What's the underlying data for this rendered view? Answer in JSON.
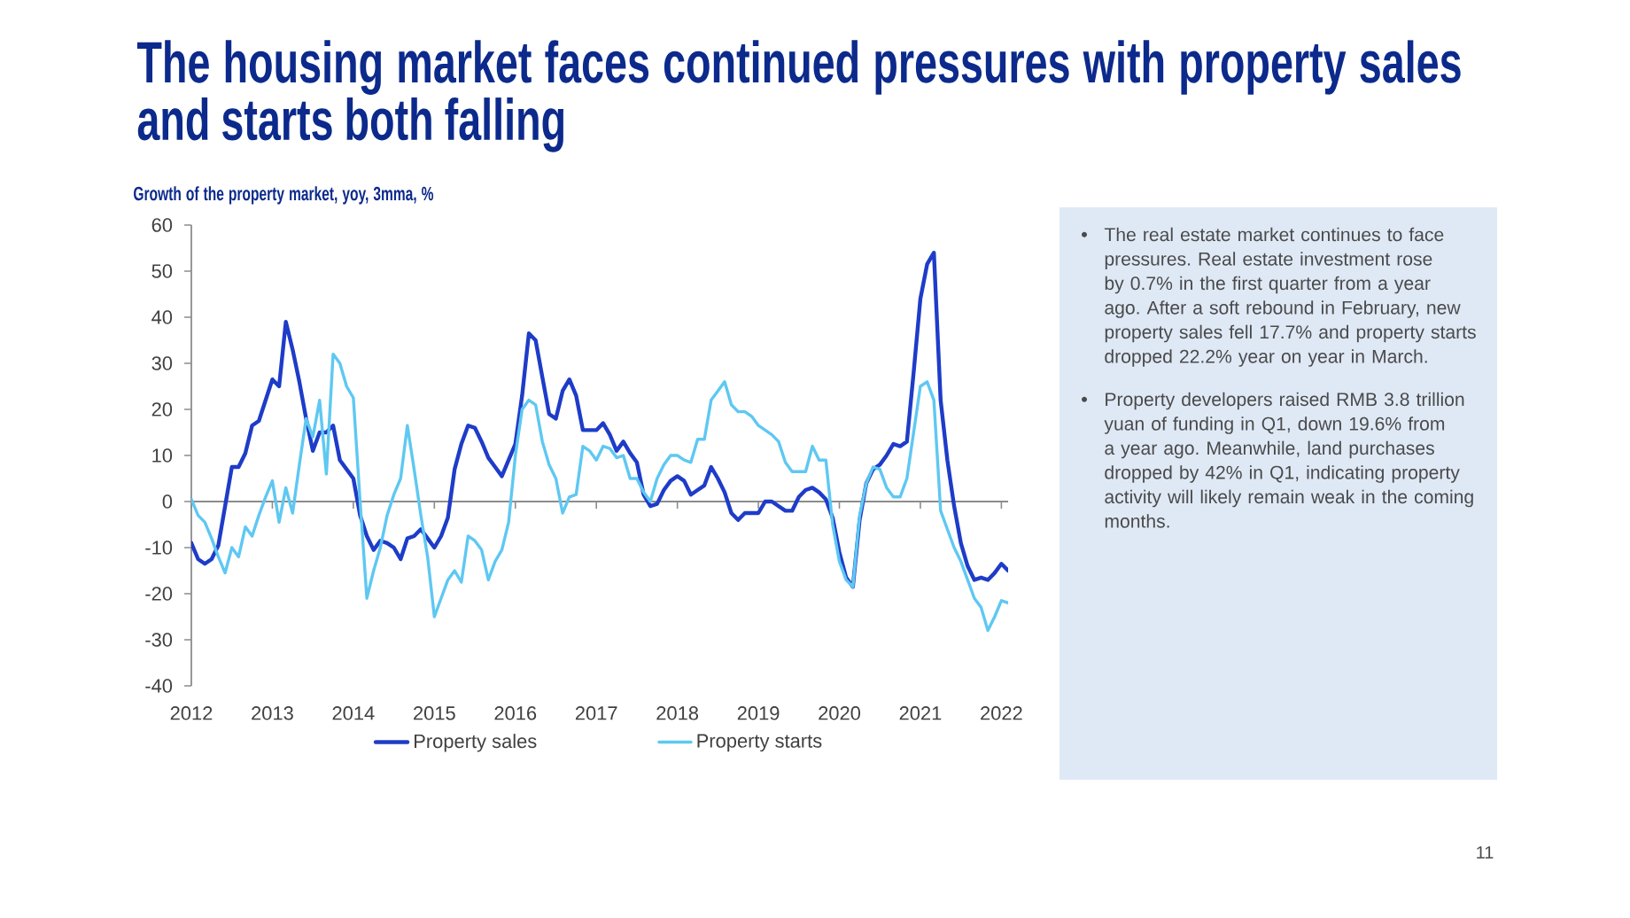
{
  "chart_data": {
    "type": "line",
    "title": "The housing market faces continued pressures with property sales and starts both falling",
    "subtitle": "Growth of the property market, yoy, 3mma, %",
    "x": [
      "2012-01",
      "2012-02",
      "2012-03",
      "2012-04",
      "2012-05",
      "2012-06",
      "2012-07",
      "2012-08",
      "2012-09",
      "2012-10",
      "2012-11",
      "2012-12",
      "2013-01",
      "2013-02",
      "2013-03",
      "2013-04",
      "2013-05",
      "2013-06",
      "2013-07",
      "2013-08",
      "2013-09",
      "2013-10",
      "2013-11",
      "2013-12",
      "2014-01",
      "2014-02",
      "2014-03",
      "2014-04",
      "2014-05",
      "2014-06",
      "2014-07",
      "2014-08",
      "2014-09",
      "2014-10",
      "2014-11",
      "2014-12",
      "2015-01",
      "2015-02",
      "2015-03",
      "2015-04",
      "2015-05",
      "2015-06",
      "2015-07",
      "2015-08",
      "2015-09",
      "2015-10",
      "2015-11",
      "2015-12",
      "2016-01",
      "2016-02",
      "2016-03",
      "2016-04",
      "2016-05",
      "2016-06",
      "2016-07",
      "2016-08",
      "2016-09",
      "2016-10",
      "2016-11",
      "2016-12",
      "2017-01",
      "2017-02",
      "2017-03",
      "2017-04",
      "2017-05",
      "2017-06",
      "2017-07",
      "2017-08",
      "2017-09",
      "2017-10",
      "2017-11",
      "2017-12",
      "2018-01",
      "2018-02",
      "2018-03",
      "2018-04",
      "2018-05",
      "2018-06",
      "2018-07",
      "2018-08",
      "2018-09",
      "2018-10",
      "2018-11",
      "2018-12",
      "2019-01",
      "2019-02",
      "2019-03",
      "2019-04",
      "2019-05",
      "2019-06",
      "2019-07",
      "2019-08",
      "2019-09",
      "2019-10",
      "2019-11",
      "2019-12",
      "2020-01",
      "2020-02",
      "2020-03",
      "2020-04",
      "2020-05",
      "2020-06",
      "2020-07",
      "2020-08",
      "2020-09",
      "2020-10",
      "2020-11",
      "2020-12",
      "2021-01",
      "2021-02",
      "2021-03",
      "2021-04",
      "2021-05",
      "2021-06",
      "2021-07",
      "2021-08",
      "2021-09",
      "2021-10",
      "2021-11",
      "2021-12",
      "2022-01",
      "2022-02"
    ],
    "xlim": [
      "2012-01",
      "2022-02"
    ],
    "xticks": [
      "2012",
      "2013",
      "2014",
      "2015",
      "2016",
      "2017",
      "2018",
      "2019",
      "2020",
      "2021",
      "2022"
    ],
    "ylim": [
      -40,
      60
    ],
    "yticks": [
      -40,
      -30,
      -20,
      -10,
      0,
      10,
      20,
      30,
      40,
      50,
      60
    ],
    "series": [
      {
        "name": "Property sales",
        "color": "#1e3cc8",
        "values": [
          -9,
          -12.5,
          -13.5,
          -12.5,
          -9.5,
          -1,
          7.5,
          7.5,
          10.5,
          16.5,
          17.5,
          22,
          26.5,
          25,
          39,
          33,
          26,
          18,
          11,
          15,
          15,
          16.5,
          9,
          7,
          5,
          -3,
          -7.5,
          -10.5,
          -8.5,
          -9,
          -10,
          -12.5,
          -8,
          -7.5,
          -6,
          -8,
          -10,
          -7.5,
          -3.5,
          7,
          12.5,
          16.5,
          16,
          13,
          9.5,
          7.5,
          5.5,
          9,
          12.5,
          23,
          36.5,
          35,
          27,
          19,
          18,
          24,
          26.5,
          23,
          15.5,
          15.5,
          15.5,
          17,
          14.5,
          11,
          13,
          10.5,
          8.5,
          1.5,
          -1,
          -0.5,
          2.5,
          4.5,
          5.5,
          4.5,
          1.5,
          2.5,
          3.5,
          7.5,
          5,
          2,
          -2.5,
          -4,
          -2.5,
          -2.5,
          -2.5,
          0,
          0,
          -1,
          -2,
          -2,
          1,
          2.5,
          3,
          2,
          0.5,
          -3.5,
          -11,
          -16.5,
          -18.5,
          -4,
          4,
          7,
          8,
          10,
          12.5,
          12,
          13,
          28,
          44,
          51.5,
          54,
          22,
          9,
          -1,
          -9,
          -14,
          -17,
          -16.5,
          -17,
          -15.5,
          -13.5,
          -15
        ]
      },
      {
        "name": "Property starts",
        "color": "#5ec8f2",
        "values": [
          0.5,
          -3,
          -4.5,
          -8,
          -12,
          -15.5,
          -10,
          -12,
          -5.5,
          -7.5,
          -3,
          1,
          4.5,
          -4.5,
          3,
          -2.5,
          8,
          18,
          14,
          22,
          6,
          32,
          30,
          25,
          22.5,
          0,
          -21,
          -15,
          -10,
          -3,
          1.5,
          5,
          16.5,
          7,
          -3,
          -12,
          -25,
          -21,
          -17,
          -15,
          -17.5,
          -7.5,
          -8.5,
          -10.5,
          -17,
          -13,
          -10.5,
          -4.5,
          10,
          20,
          22,
          21,
          13,
          8,
          5,
          -2.5,
          1,
          1.5,
          12,
          11,
          9,
          12,
          11.5,
          9.5,
          10,
          5,
          5,
          2,
          0,
          5,
          8,
          10,
          10,
          9,
          8.5,
          13.5,
          13.5,
          22,
          24,
          26,
          21,
          19.5,
          19.5,
          18.5,
          16.5,
          15.5,
          14.5,
          13,
          8.5,
          6.5,
          6.5,
          6.5,
          12,
          9,
          9,
          -5,
          -13,
          -17,
          -18.5,
          -3,
          4,
          7.5,
          7,
          3,
          1,
          1,
          5,
          15,
          25,
          26,
          22,
          -2,
          -6,
          -10,
          -13,
          -17,
          -21,
          -23,
          -28,
          -25,
          -21.5,
          -22
        ]
      }
    ],
    "legend": "bottom",
    "marker": "none",
    "line_style": "solid",
    "annotations": [
      "The real estate market continues to face pressures. Real estate investment rose by 0.7% in the first quarter from a year ago. After a soft rebound in February, new property sales fell 17.7% and property starts dropped 22.2% year on year in March.",
      "Property developers raised RMB 3.8 trillion yuan of funding in Q1, down 19.6% from a year ago. Meanwhile, land purchases dropped by 42% in Q1, indicating property activity will likely remain weak in the coming months.",
      "11"
    ]
  }
}
